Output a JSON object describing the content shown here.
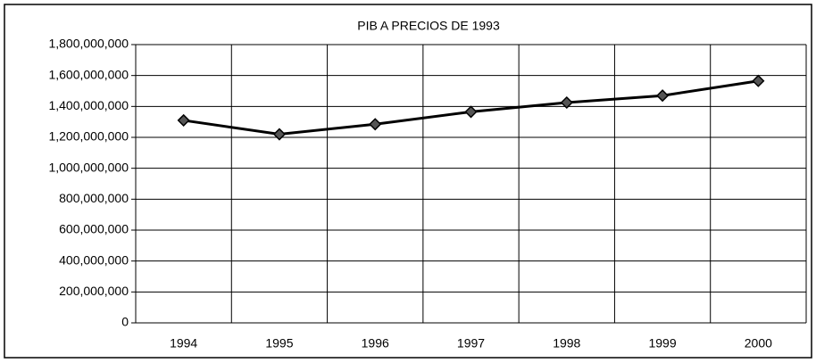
{
  "chart_data": {
    "type": "line",
    "title": "PIB A PRECIOS DE 1993",
    "categories": [
      "1994",
      "1995",
      "1996",
      "1997",
      "1998",
      "1999",
      "2000"
    ],
    "series": [
      {
        "name": "PIB",
        "color": "#000000",
        "values": [
          1310000000,
          1220000000,
          1285000000,
          1365000000,
          1425000000,
          1470000000,
          1565000000
        ]
      }
    ],
    "ylim": [
      0,
      1800000000
    ],
    "yticks": [
      0,
      {
        "value": 200000000,
        "label": "200,000,000"
      },
      {
        "value": 400000000,
        "label": "400,000,000"
      },
      {
        "value": 600000000,
        "label": "600,000,000"
      },
      {
        "value": 800000000,
        "label": "800,000,000"
      },
      {
        "value": 1000000000,
        "label": "1,000,000,000"
      },
      {
        "value": 1200000000,
        "label": "1,200,000,000"
      },
      {
        "value": 1400000000,
        "label": "1,400,000,000"
      },
      {
        "value": 1600000000,
        "label": "1,600,000,000"
      },
      {
        "value": 1800000000,
        "label": "1,800,000,000"
      }
    ],
    "grid": true
  }
}
